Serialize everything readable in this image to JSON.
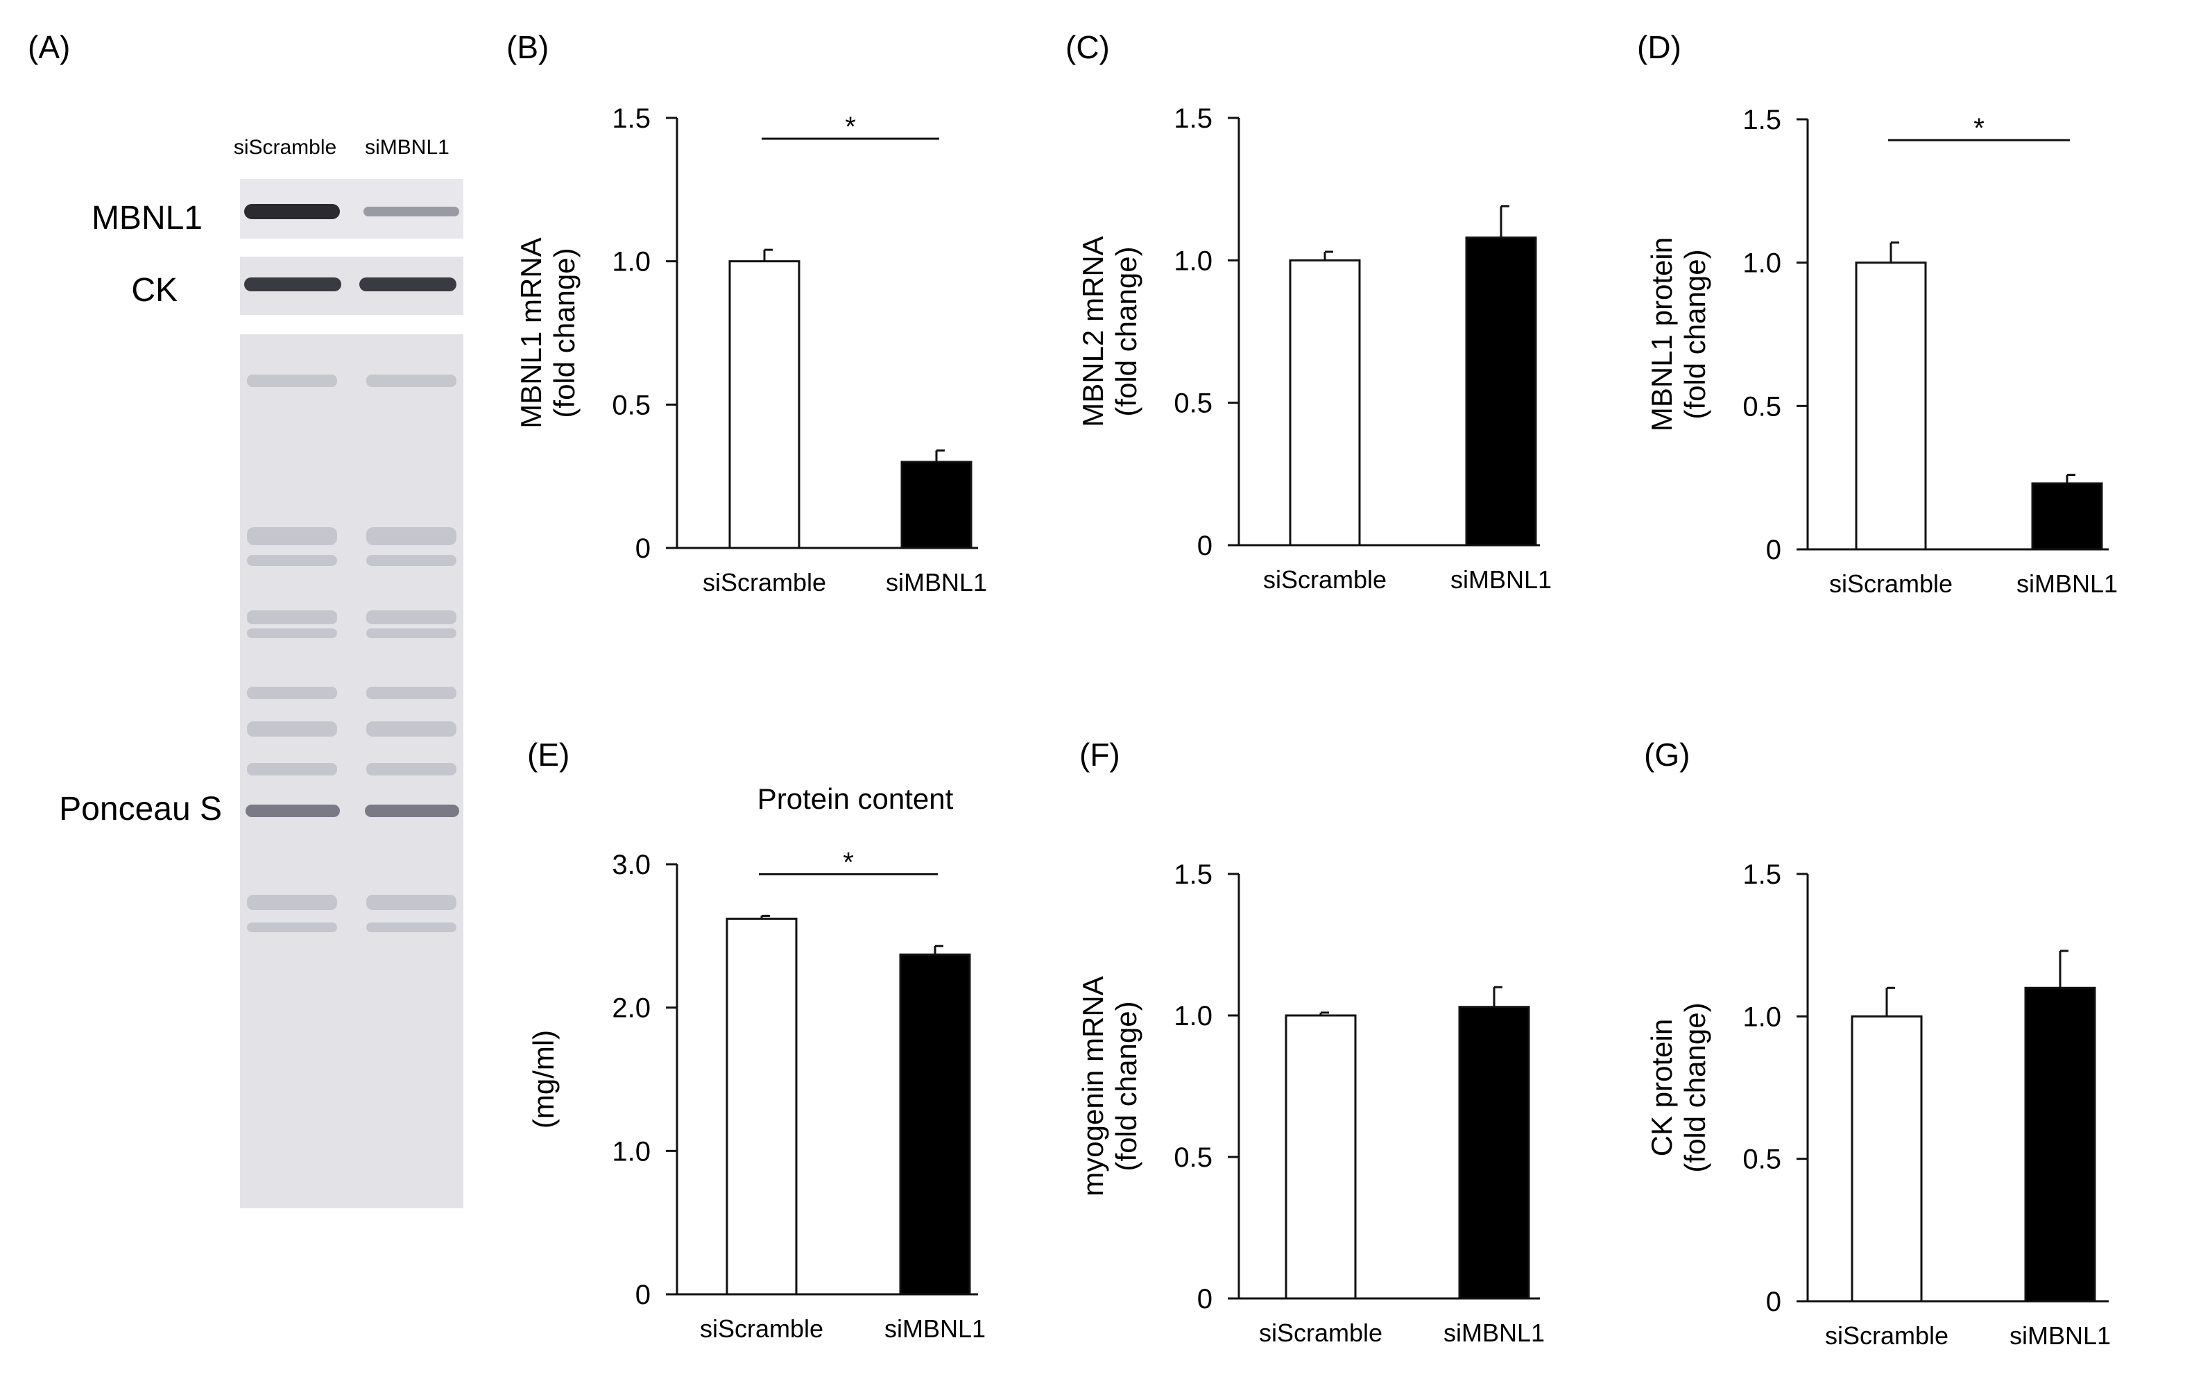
{
  "panel_labels": {
    "a": "(A)",
    "b": "(B)",
    "c": "(C)",
    "d": "(D)",
    "e": "(E)",
    "f": "(F)",
    "g": "(G)"
  },
  "blot": {
    "lanes": [
      "siScramble",
      "siMBNL1"
    ],
    "rows": {
      "mbnl1": "MBNL1",
      "ck": "CK",
      "ponceau": "Ponceau S"
    }
  },
  "colors": {
    "scramble_fill": "#ffffff",
    "mbnl1_fill": "#000000",
    "axis": "#111111"
  },
  "chart_data": [
    {
      "id": "B",
      "type": "bar",
      "categories": [
        "siScramble",
        "siMBNL1"
      ],
      "values": [
        1.0,
        0.3
      ],
      "errors": [
        0.04,
        0.04
      ],
      "ylim": [
        0,
        1.5
      ],
      "yticks": [
        "0",
        "0.5",
        "1.0",
        "1.5"
      ],
      "ylabel": [
        "MBNL1 mRNA",
        "(fold change)"
      ],
      "title": "",
      "significance": "*"
    },
    {
      "id": "C",
      "type": "bar",
      "categories": [
        "siScramble",
        "siMBNL1"
      ],
      "values": [
        1.0,
        1.08
      ],
      "errors": [
        0.03,
        0.11
      ],
      "ylim": [
        0,
        1.5
      ],
      "yticks": [
        "0",
        "0.5",
        "1.0",
        "1.5"
      ],
      "ylabel": [
        "MBNL2 mRNA",
        "(fold change)"
      ],
      "title": "",
      "significance": ""
    },
    {
      "id": "D",
      "type": "bar",
      "categories": [
        "siScramble",
        "siMBNL1"
      ],
      "values": [
        1.0,
        0.23
      ],
      "errors": [
        0.07,
        0.03
      ],
      "ylim": [
        0,
        1.5
      ],
      "yticks": [
        "0",
        "0.5",
        "1.0",
        "1.5"
      ],
      "ylabel": [
        "MBNL1 protein",
        "(fold change)"
      ],
      "title": "",
      "significance": "*"
    },
    {
      "id": "E",
      "type": "bar",
      "categories": [
        "siScramble",
        "siMBNL1"
      ],
      "values": [
        2.62,
        2.37
      ],
      "errors": [
        0.02,
        0.06
      ],
      "ylim": [
        0,
        3.0
      ],
      "yticks": [
        "0",
        "1.0",
        "2.0",
        "3.0"
      ],
      "ylabel": [
        "(mg/ml)"
      ],
      "title": "Protein content",
      "significance": "*"
    },
    {
      "id": "F",
      "type": "bar",
      "categories": [
        "siScramble",
        "siMBNL1"
      ],
      "values": [
        1.0,
        1.03
      ],
      "errors": [
        0.01,
        0.07
      ],
      "ylim": [
        0,
        1.5
      ],
      "yticks": [
        "0",
        "0.5",
        "1.0",
        "1.5"
      ],
      "ylabel": [
        "myogenin mRNA",
        "(fold change)"
      ],
      "title": "",
      "significance": ""
    },
    {
      "id": "G",
      "type": "bar",
      "categories": [
        "siScramble",
        "siMBNL1"
      ],
      "values": [
        1.0,
        1.1
      ],
      "errors": [
        0.1,
        0.13
      ],
      "ylim": [
        0,
        1.5
      ],
      "yticks": [
        "0",
        "0.5",
        "1.0",
        "1.5"
      ],
      "ylabel": [
        "CK protein",
        "(fold change)"
      ],
      "title": "",
      "significance": ""
    }
  ]
}
